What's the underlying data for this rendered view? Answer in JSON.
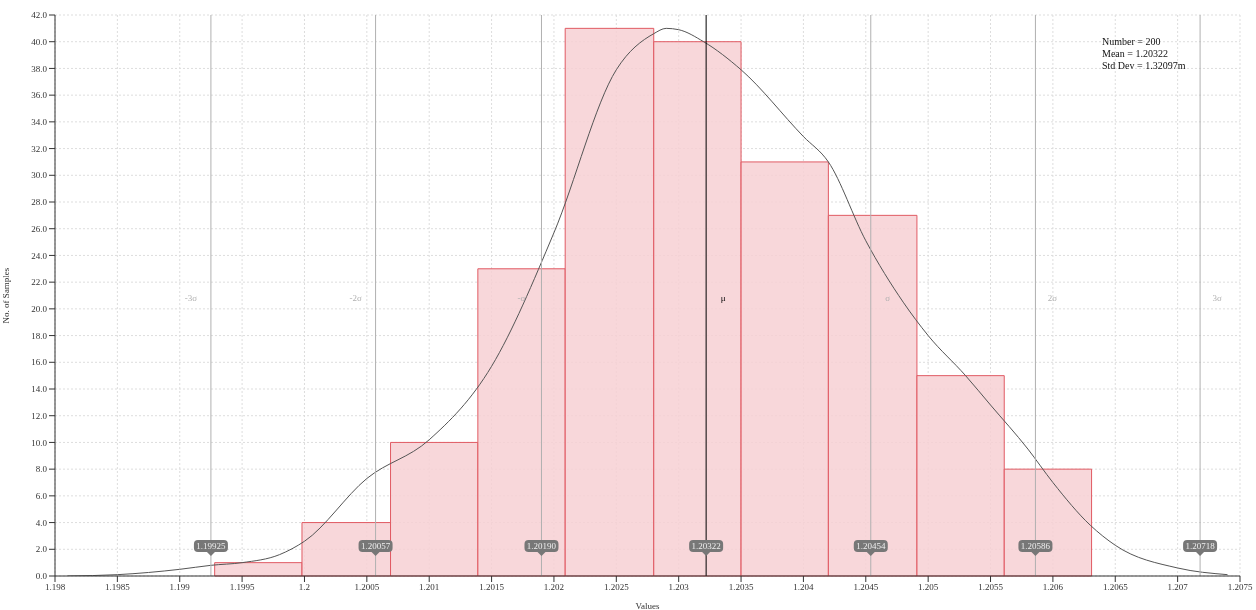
{
  "chart_data": {
    "type": "histogram",
    "xlabel": "Values",
    "ylabel": "No. of Samples",
    "bins": [
      1.19928,
      1.19998,
      1.20069,
      1.20139,
      1.20209,
      1.2028,
      1.2035,
      1.2042,
      1.20491,
      1.20561,
      1.20631
    ],
    "series": [
      {
        "color": "#f7d0d3",
        "values": [
          1,
          4,
          10,
          23,
          41,
          40,
          31,
          27,
          15,
          8
        ]
      },
      {
        "type": "line",
        "color": "#555555",
        "x": [
          1.1981,
          1.1985,
          1.199,
          1.19925,
          1.1995,
          1.1998,
          1.2,
          1.2005,
          1.201,
          1.2015,
          1.202,
          1.2025,
          1.2028,
          1.2029,
          1.203,
          1.2032,
          1.2035,
          1.204,
          1.2042,
          1.2045,
          1.2048,
          1.205,
          1.2053,
          1.2055,
          1.2058,
          1.206,
          1.2063,
          1.2065,
          1.207,
          1.2074
        ],
        "values": [
          0,
          0.1,
          0.5,
          0.8,
          1,
          1.6,
          2.6,
          7.3,
          10.2,
          15.7,
          25.7,
          37.9,
          40.6,
          41,
          40.9,
          40,
          37.9,
          32.9,
          31,
          25.1,
          20.5,
          18,
          15,
          12.8,
          9.5,
          7,
          3.8,
          2.3,
          0.6,
          0.1
        ]
      }
    ],
    "xlim": [
      1.198,
      1.2075
    ],
    "xticks": [
      1.198,
      1.1985,
      1.199,
      1.1995,
      1.2,
      1.2005,
      1.201,
      1.2015,
      1.202,
      1.2025,
      1.203,
      1.2035,
      1.204,
      1.2045,
      1.205,
      1.2055,
      1.206,
      1.2065,
      1.207,
      1.2075
    ],
    "ylim": [
      0,
      42
    ],
    "yticks": [
      {
        "value": 0,
        "label": "0.0"
      },
      {
        "value": 2,
        "label": "2.0"
      },
      {
        "value": 4,
        "label": "4.0"
      },
      {
        "value": 6,
        "label": "6.0"
      },
      {
        "value": 8,
        "label": "8.0"
      },
      {
        "value": 10,
        "label": "10.0"
      },
      {
        "value": 12,
        "label": "12.0"
      },
      {
        "value": 14,
        "label": "14.0"
      },
      {
        "value": 16,
        "label": "16.0"
      },
      {
        "value": 18,
        "label": "18.0"
      },
      {
        "value": 20,
        "label": "20.0"
      },
      {
        "value": 22,
        "label": "22.0"
      },
      {
        "value": 24,
        "label": "24.0"
      },
      {
        "value": 26,
        "label": "26.0"
      },
      {
        "value": 28,
        "label": "28.0"
      },
      {
        "value": 30,
        "label": "30.0"
      },
      {
        "value": 32,
        "label": "32.0"
      },
      {
        "value": 34,
        "label": "34.0"
      },
      {
        "value": 36,
        "label": "36.0"
      },
      {
        "value": 38,
        "label": "38.0"
      },
      {
        "value": 40,
        "label": "40.0"
      },
      {
        "value": 42,
        "label": "42.0"
      }
    ],
    "ref_lines": [
      {
        "axis": "x",
        "value": 1.19925,
        "label": "1.19925",
        "color": "#b0b0b0"
      },
      {
        "axis": "x",
        "value": 1.20057,
        "label": "1.20057",
        "color": "#b0b0b0"
      },
      {
        "axis": "x",
        "value": 1.2019,
        "label": "1.20190",
        "color": "#b0b0b0"
      },
      {
        "axis": "x",
        "value": 1.20322,
        "label": "1.20322",
        "color": "#000000"
      },
      {
        "axis": "x",
        "value": 1.20454,
        "label": "1.20454",
        "color": "#b0b0b0"
      },
      {
        "axis": "x",
        "value": 1.20586,
        "label": "1.20586",
        "color": "#b0b0b0"
      },
      {
        "axis": "x",
        "value": 1.20718,
        "label": "1.20718",
        "color": "#b0b0b0"
      }
    ],
    "annotations": [
      "Number = 200",
      "Mean = 1.20322",
      "Std Dev = 1.32097m",
      "-3σ",
      "-2σ",
      "-σ",
      "μ",
      "σ",
      "2σ",
      "3σ"
    ],
    "grid": true
  }
}
